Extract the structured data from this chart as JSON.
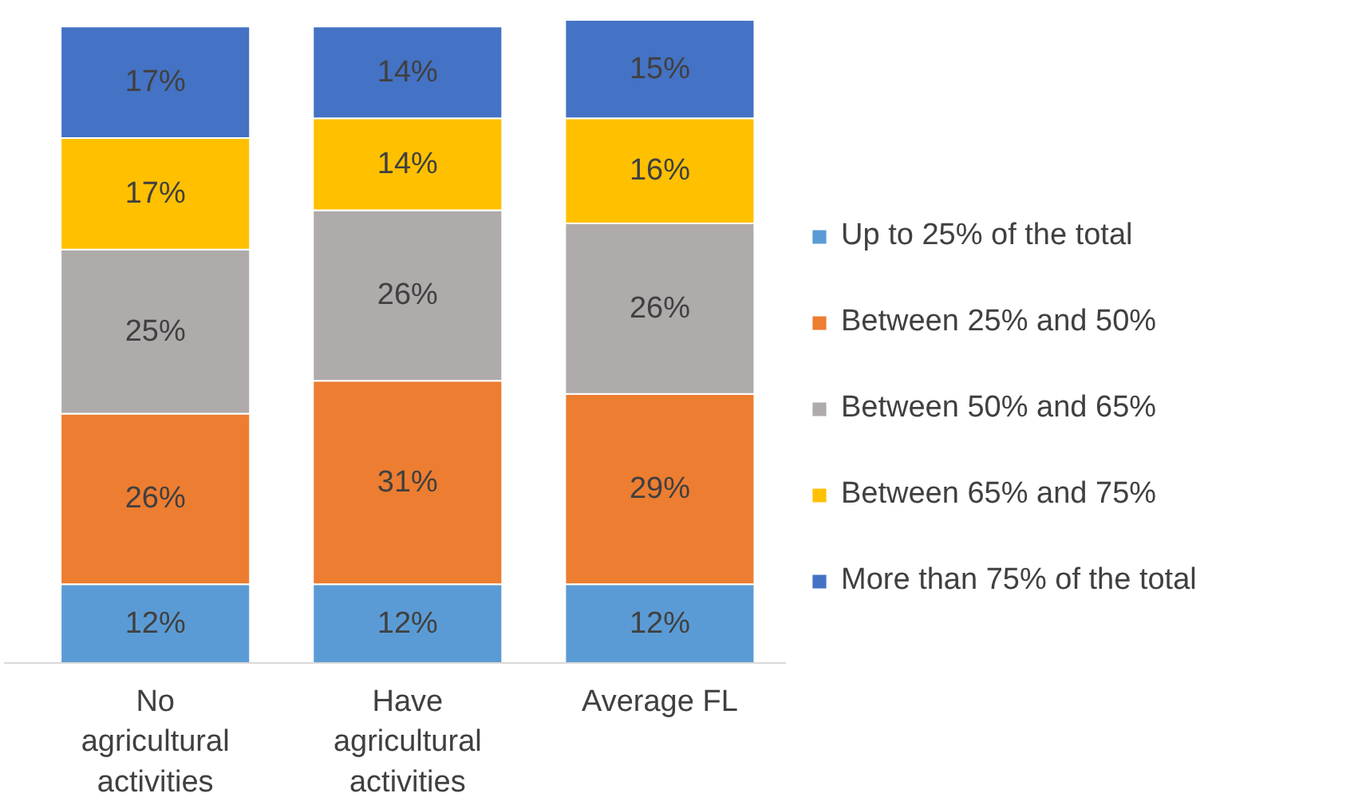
{
  "chart_data": {
    "type": "bar",
    "stacked": true,
    "data_labels": true,
    "legend": "right",
    "grid": false,
    "categories": [
      "No agricultural activities",
      "Have agricultural activities",
      "Average FL"
    ],
    "series": [
      {
        "name": "Up to 25% of the total",
        "color": "#5b9bd5",
        "values": [
          12,
          12,
          12
        ],
        "value_labels": [
          "12%",
          "12%",
          "12%"
        ]
      },
      {
        "name": "Between 25% and 50%",
        "color": "#ed7d31",
        "values": [
          26,
          31,
          29
        ],
        "value_labels": [
          "26%",
          "31%",
          "29%"
        ]
      },
      {
        "name": "Between 50% and 65%",
        "color": "#afabab",
        "values": [
          25,
          26,
          26
        ],
        "value_labels": [
          "25%",
          "26%",
          "26%"
        ]
      },
      {
        "name": "Between 65% and 75%",
        "color": "#ffc000",
        "values": [
          17,
          14,
          16
        ],
        "value_labels": [
          "17%",
          "14%",
          "16%"
        ]
      },
      {
        "name": "More than 75% of the total",
        "color": "#4472c4",
        "values": [
          17,
          14,
          15
        ],
        "value_labels": [
          "17%",
          "14%",
          "15%"
        ]
      }
    ]
  }
}
